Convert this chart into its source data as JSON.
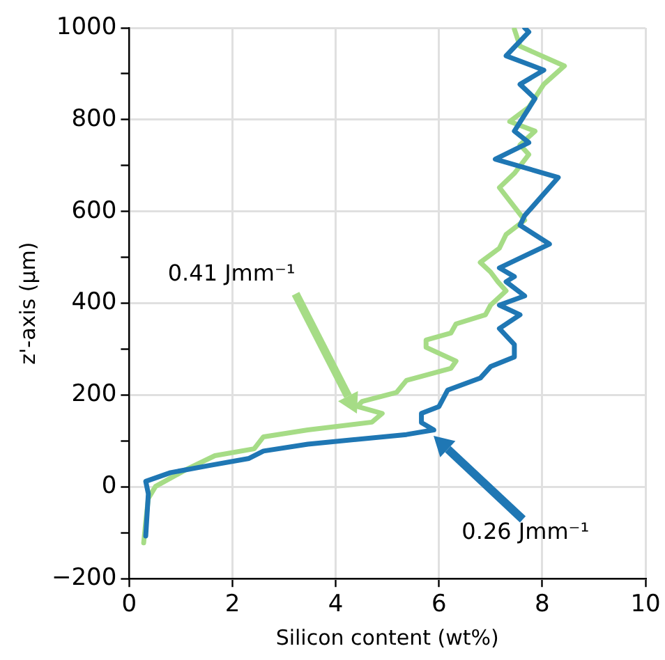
{
  "chart_data": {
    "type": "line",
    "xlabel": "Silicon content (wt%)",
    "ylabel": "z'-axis (μm)",
    "xlim": [
      0,
      10
    ],
    "xticks": [
      0,
      2,
      4,
      6,
      8,
      10
    ],
    "ylim": [
      -200,
      1000
    ],
    "yticks": [
      -200,
      {
        "value": -100,
        "label": null
      },
      0,
      {
        "value": 100,
        "label": null
      },
      200,
      {
        "value": 300,
        "label": null
      },
      400,
      {
        "value": 500,
        "label": null
      },
      600,
      {
        "value": 700,
        "label": null
      },
      800,
      {
        "value": 900,
        "label": null
      },
      1000
    ],
    "grid": true,
    "legend": false,
    "marker": "none",
    "line_style": "solid",
    "series": [
      {
        "color": "#1f77b4",
        "x": [
          0.32,
          0.37,
          0.32,
          0.8,
          1.57,
          2.32,
          2.6,
          3.46,
          5.37,
          5.9,
          5.66,
          5.66,
          6.0,
          6.17,
          6.8,
          7.0,
          7.46,
          7.46,
          7.17,
          7.57,
          7.17,
          7.66,
          7.3,
          7.46,
          7.17,
          8.14,
          7.57,
          7.66,
          8.31,
          7.09,
          7.74,
          7.46,
          7.86,
          7.57,
          8.03,
          7.3,
          7.74,
          7.66
        ],
        "values": [
          -107,
          -15,
          12,
          31,
          47,
          62,
          78,
          93,
          114,
          124,
          140,
          160,
          175,
          211,
          237,
          262,
          283,
          310,
          345,
          375,
          396,
          416,
          447,
          458,
          477,
          529,
          570,
          591,
          674,
          714,
          750,
          775,
          846,
          877,
          908,
          939,
          991,
          1000
        ]
      },
      {
        "color": "#a6dc86",
        "x": [
          0.28,
          0.32,
          0.37,
          0.51,
          1.09,
          1.66,
          2.42,
          2.6,
          3.46,
          4.7,
          4.9,
          4.42,
          4.51,
          5.18,
          5.37,
          6.23,
          6.33,
          5.75,
          5.75,
          6.23,
          6.33,
          6.9,
          7.0,
          7.3,
          7.14,
          7.0,
          6.8,
          7.17,
          7.3,
          7.66,
          7.17,
          7.46,
          7.74,
          7.57,
          7.86,
          7.37,
          7.74,
          8.03,
          8.43,
          7.57,
          7.46
        ],
        "values": [
          -122,
          -76,
          -25,
          1,
          37,
          68,
          83,
          109,
          124,
          141,
          160,
          175,
          186,
          206,
          232,
          258,
          274,
          304,
          320,
          335,
          355,
          375,
          396,
          427,
          447,
          468,
          489,
          520,
          550,
          581,
          652,
          683,
          724,
          745,
          775,
          796,
          827,
          877,
          917,
          960,
          997
        ]
      }
    ],
    "annotations": [
      "0.41 Jmm⁻¹",
      "0.26 Jmm⁻¹"
    ]
  }
}
